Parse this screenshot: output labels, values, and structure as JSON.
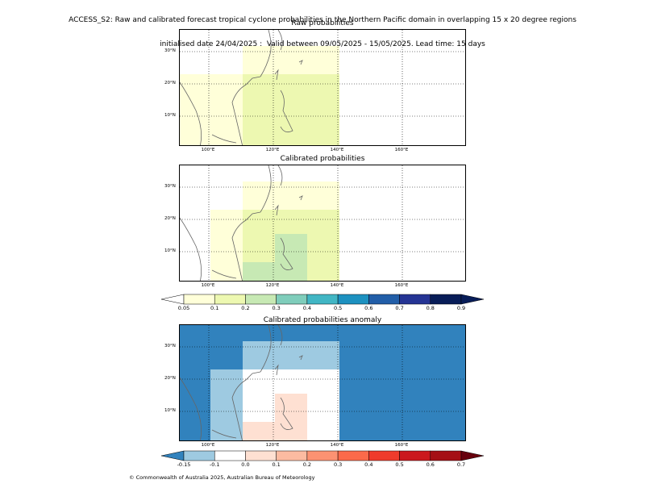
{
  "header": {
    "line1": "ACCESS_S2: Raw and calibrated forecast tropical cyclone probabilities in the Northern Pacific domain in overlapping 15 x 20 degree regions",
    "line2": "initialised date 24/04/2025 :  Valid between 09/05/2025 - 15/05/2025. Lead time: 15 days"
  },
  "panels": [
    {
      "title": "Raw probabilities"
    },
    {
      "title": "Calibrated probabilities"
    },
    {
      "title": "Calibrated probabilities anomaly"
    }
  ],
  "axes": {
    "x_ticks": [
      "100°E",
      "120°E",
      "140°E",
      "160°E"
    ],
    "y_ticks": [
      "30°N",
      "20°N",
      "10°N"
    ]
  },
  "colorbar_prob": {
    "labels": [
      "0.05",
      "0.1",
      "0.2",
      "0.3",
      "0.4",
      "0.5",
      "0.6",
      "0.7",
      "0.8",
      "0.9"
    ],
    "colors": [
      "#ffffd9",
      "#edf8b1",
      "#c7e9b4",
      "#7fcdbb",
      "#41b6c4",
      "#1d91c0",
      "#225ea8",
      "#253494",
      "#081d58"
    ]
  },
  "colorbar_anom": {
    "labels": [
      "-0.15",
      "-0.1",
      "0.0",
      "0.1",
      "0.2",
      "0.3",
      "0.4",
      "0.5",
      "0.6",
      "0.7"
    ],
    "colors": [
      "#9ecae1",
      "#ffffff",
      "#fee0d2",
      "#fcbba1",
      "#fc9272",
      "#fb6a4a",
      "#ef3b2c",
      "#cb181d",
      "#a50f15"
    ],
    "under_color": "#3182bd",
    "over_color": "#67000d"
  },
  "footer": "© Commonwealth of Australia 2025, Australian Bureau of Meteorology"
}
